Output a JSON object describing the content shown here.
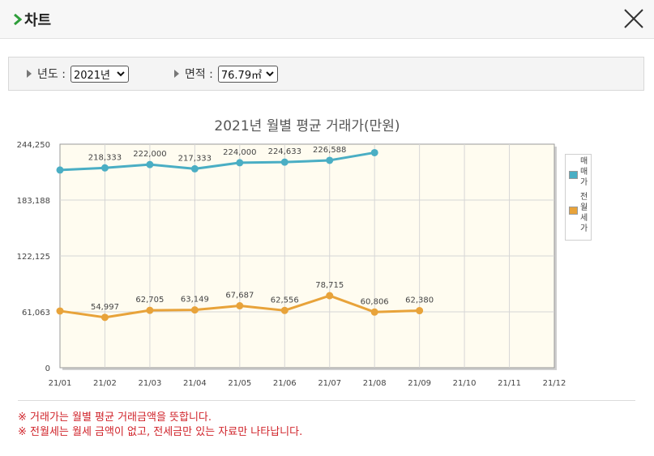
{
  "header": {
    "title": "차트",
    "close_icon": "close-icon"
  },
  "filter": {
    "year_label": "년도 :",
    "year_value": "2021년",
    "area_label": "면적 :",
    "area_value": "76.79㎡"
  },
  "chart_data": {
    "type": "line",
    "title": "2021년 월별 평균 거래가(만원)",
    "categories": [
      "21/01",
      "21/02",
      "21/03",
      "21/04",
      "21/05",
      "21/06",
      "21/07",
      "21/08",
      "21/09",
      "21/10",
      "21/11",
      "21/12"
    ],
    "y_ticks": [
      "0",
      "61,063",
      "122,125",
      "183,188",
      "244,250"
    ],
    "ylim": [
      0,
      244250
    ],
    "grid": true,
    "legend_position": "right",
    "series": [
      {
        "name": "매매가",
        "color": "#4aaec4",
        "values": [
          216000,
          218333,
          222000,
          217333,
          224000,
          224633,
          226588,
          235000,
          null,
          null,
          null,
          null
        ],
        "labels": [
          "",
          "218,333",
          "222,000",
          "217,333",
          "224,000",
          "224,633",
          "226,588",
          "",
          "",
          "",
          "",
          ""
        ]
      },
      {
        "name": "전월세가",
        "color": "#e8a33a",
        "values": [
          62000,
          54997,
          62705,
          63149,
          67687,
          62556,
          78715,
          60806,
          62380,
          null,
          null,
          null
        ],
        "labels": [
          "",
          "54,997",
          "62,705",
          "63,149",
          "67,687",
          "62,556",
          "78,715",
          "60,806",
          "62,380",
          "",
          "",
          ""
        ]
      }
    ]
  },
  "notes": [
    "※ 거래가는 월별 평균 거래금액을 뜻합니다.",
    "※ 전월세는 월세 금액이 없고, 전세금만 있는 자료만 나타납니다."
  ]
}
